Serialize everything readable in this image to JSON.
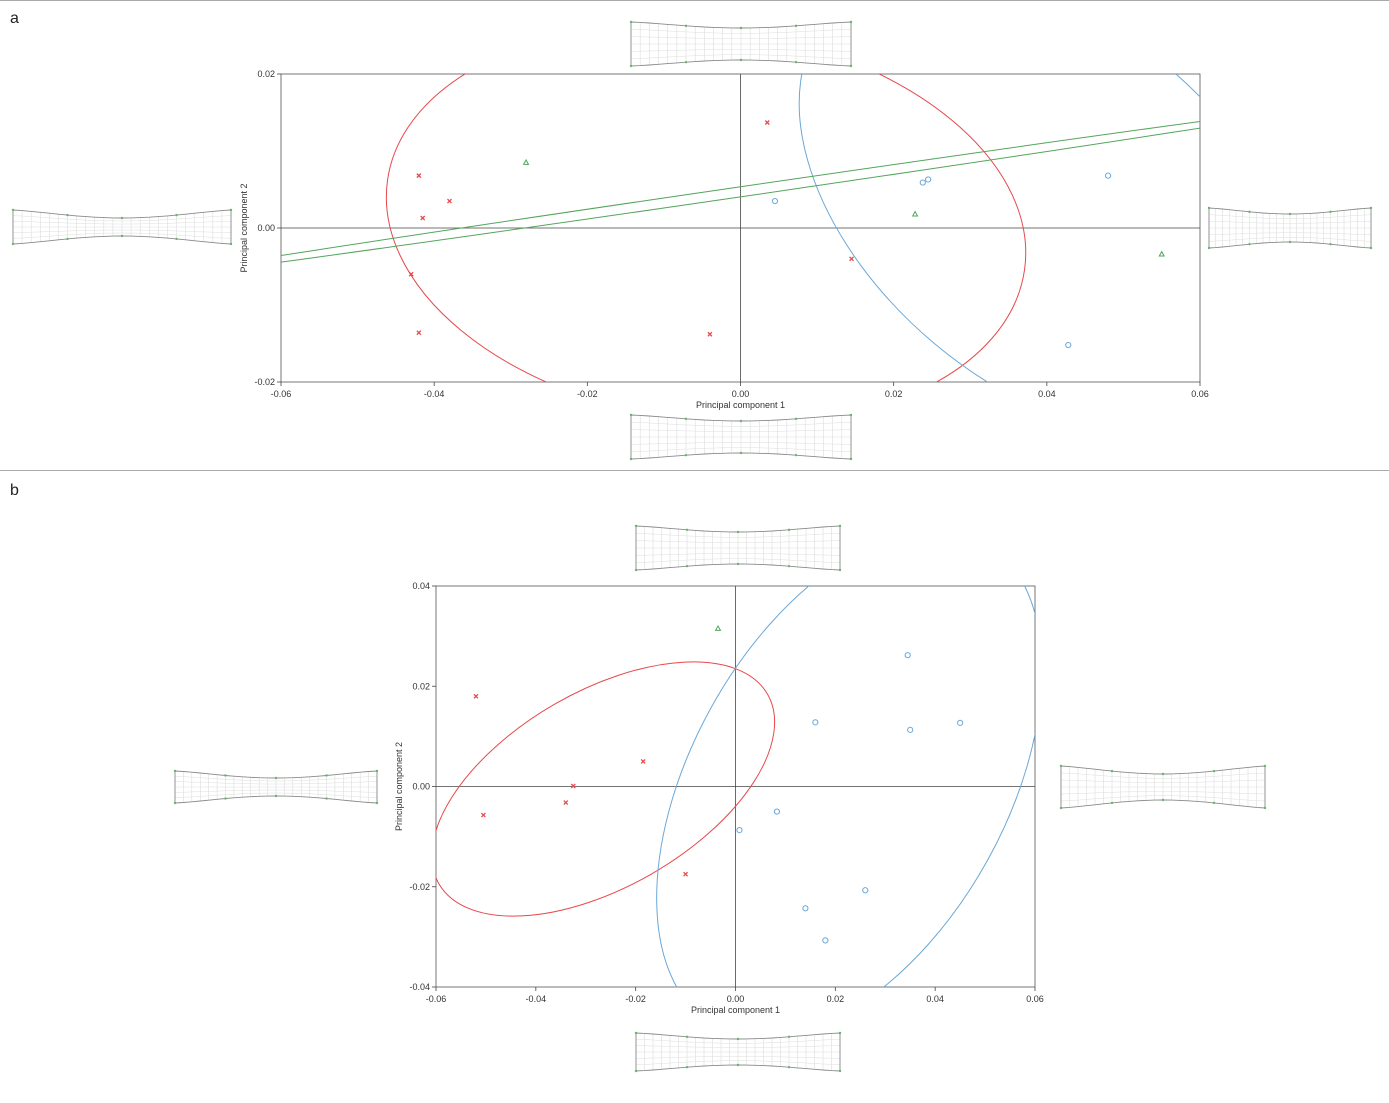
{
  "panels": [
    {
      "letter": "a"
    },
    {
      "letter": "b"
    }
  ],
  "colors": {
    "group1_red": "#e8484b",
    "group2_blue": "#6aa8d8",
    "group3_green": "#52a55a",
    "axis": "#555555"
  },
  "chart_data": [
    {
      "type": "scatter",
      "title": "",
      "xlabel": "Principal component 1",
      "ylabel": "Principal component 2",
      "xlim": [
        -0.06,
        0.06
      ],
      "ylim": [
        -0.02,
        0.02
      ],
      "xticks": [
        "-0.06",
        "-0.04",
        "-0.02",
        "0.00",
        "0.02",
        "0.04",
        "0.06"
      ],
      "yticks": [
        "-0.02",
        "0.00",
        "0.02"
      ],
      "series": [
        {
          "marker": "x",
          "color": "#e8484b",
          "points": [
            [
              -0.042,
              0.0068
            ],
            [
              -0.0415,
              0.0013
            ],
            [
              -0.038,
              0.0035
            ],
            [
              -0.043,
              -0.006
            ],
            [
              -0.042,
              -0.0136
            ],
            [
              -0.004,
              -0.0138
            ],
            [
              0.0035,
              0.0137
            ],
            [
              0.0145,
              -0.004
            ]
          ]
        },
        {
          "marker": "circle",
          "color": "#6aa8d8",
          "points": [
            [
              0.0045,
              0.0035
            ],
            [
              0.0238,
              0.0059
            ],
            [
              0.0245,
              0.0063
            ],
            [
              0.048,
              0.0068
            ],
            [
              0.0428,
              -0.0152
            ]
          ]
        },
        {
          "marker": "triangle",
          "color": "#52a55a",
          "points": [
            [
              -0.028,
              0.0085
            ],
            [
              0.0228,
              0.0018
            ],
            [
              0.055,
              -0.0034
            ]
          ]
        }
      ],
      "ellipses": [
        {
          "color": "#e8484b",
          "cx": -0.0045,
          "cy": 0.0004,
          "rx": 0.042,
          "ry": 0.0255,
          "rot": 8
        },
        {
          "color": "#6aa8d8",
          "cx": 0.0405,
          "cy": 0.003,
          "rx": 0.038,
          "ry": 0.0235,
          "rot": 40
        },
        {
          "color": "#52a55a",
          "cx": 0.0,
          "cy": 0.0047,
          "rx": 0.08,
          "ry": 0.00065,
          "rot": -8.3
        }
      ]
    },
    {
      "type": "scatter",
      "title": "",
      "xlabel": "Principal component 1",
      "ylabel": "Principal component 2",
      "xlim": [
        -0.06,
        0.06
      ],
      "ylim": [
        -0.04,
        0.04
      ],
      "xticks": [
        "-0.06",
        "-0.04",
        "-0.02",
        "0.00",
        "0.02",
        "0.04",
        "0.06"
      ],
      "yticks": [
        "-0.04",
        "-0.02",
        "0.00",
        "0.02",
        "0.04"
      ],
      "series": [
        {
          "marker": "x",
          "color": "#e8484b",
          "points": [
            [
              -0.052,
              0.018
            ],
            [
              -0.0505,
              -0.0057
            ],
            [
              -0.034,
              -0.0032
            ],
            [
              -0.0325,
              0.0001
            ],
            [
              -0.0185,
              0.005
            ],
            [
              -0.01,
              -0.0175
            ]
          ]
        },
        {
          "marker": "circle",
          "color": "#6aa8d8",
          "points": [
            [
              0.016,
              0.0128
            ],
            [
              0.0345,
              0.0262
            ],
            [
              0.035,
              0.0113
            ],
            [
              0.045,
              0.0127
            ],
            [
              0.0083,
              -0.005
            ],
            [
              0.0008,
              -0.0087
            ],
            [
              0.026,
              -0.0207
            ],
            [
              0.014,
              -0.0243
            ],
            [
              0.018,
              -0.0307
            ]
          ]
        },
        {
          "marker": "triangle",
          "color": "#52a55a",
          "points": [
            [
              -0.0035,
              0.0315
            ]
          ]
        }
      ],
      "ellipses": [
        {
          "color": "#e8484b",
          "cx": -0.0265,
          "cy": -0.0005,
          "rx": 0.038,
          "ry": 0.0195,
          "rot": -30
        },
        {
          "color": "#6aa8d8",
          "cx": 0.0228,
          "cy": 0.0005,
          "rx": 0.0555,
          "ry": 0.0315,
          "rot": -61
        }
      ]
    }
  ]
}
